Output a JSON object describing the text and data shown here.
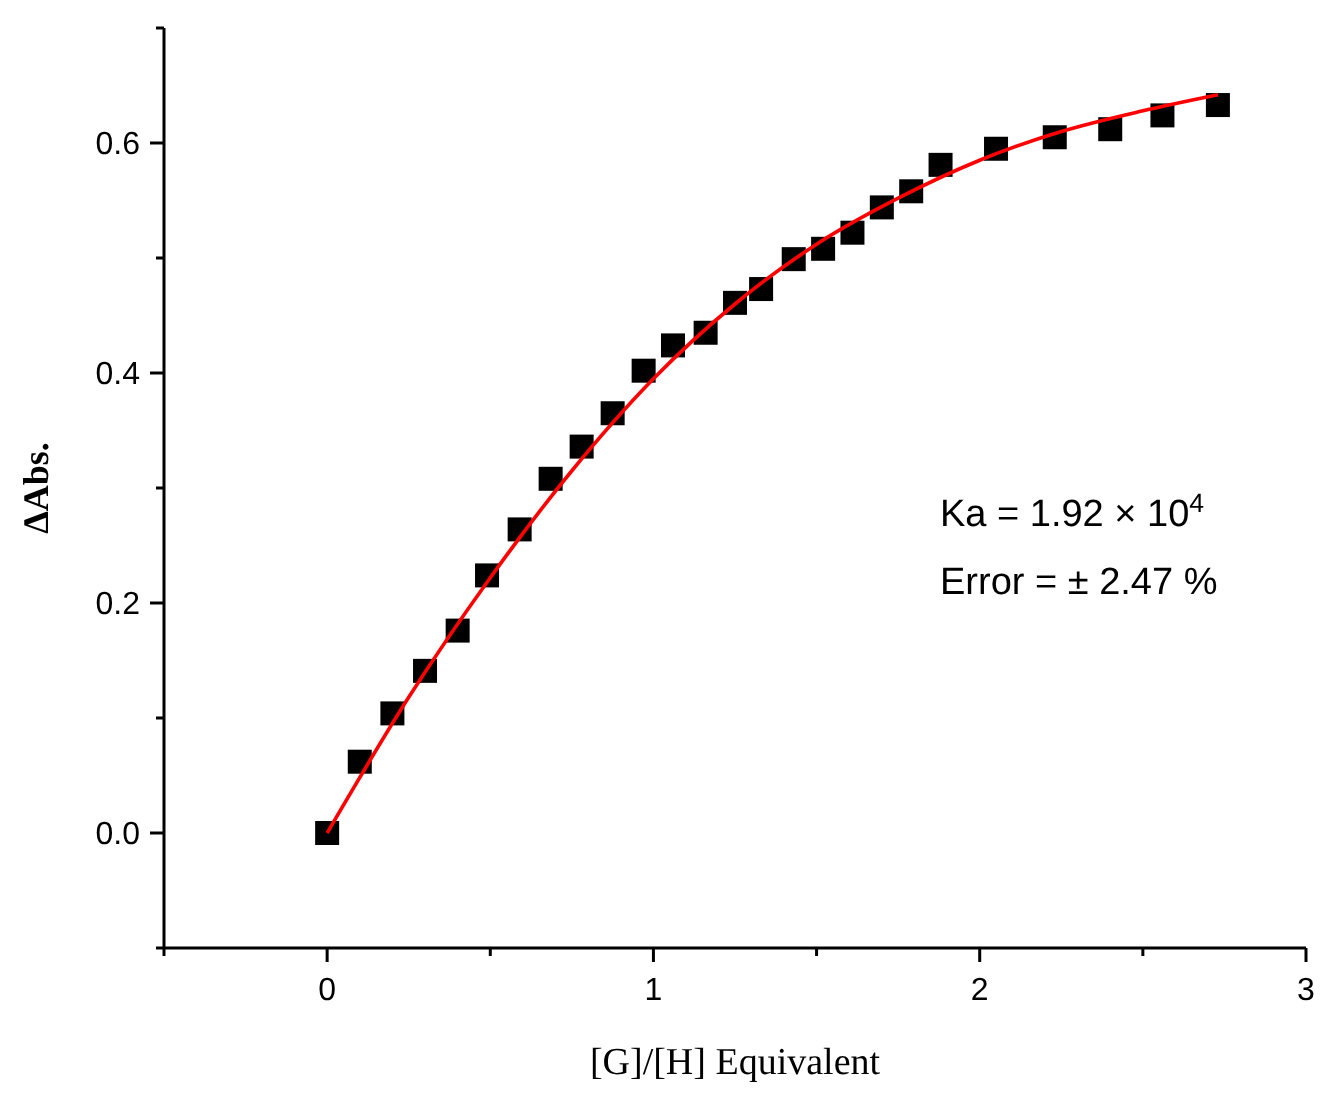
{
  "chart_data": {
    "type": "scatter",
    "xlabel": "[G]/[H] Equivalent",
    "ylabel": "ΔAbs.",
    "xlim": [
      -0.5,
      3
    ],
    "ylim": [
      -0.1,
      0.7
    ],
    "xticks": [
      {
        "value": -0.5,
        "label": null
      },
      0,
      {
        "value": 0.5,
        "label": null
      },
      1,
      {
        "value": 1.5,
        "label": null
      },
      2,
      {
        "value": 2.5,
        "label": null
      },
      3
    ],
    "yticks": [
      {
        "value": -0.1,
        "label": null
      },
      {
        "value": 0,
        "label": "0.0"
      },
      {
        "value": 0.1,
        "label": null
      },
      {
        "value": 0.2,
        "label": "0.2"
      },
      {
        "value": 0.3,
        "label": null
      },
      {
        "value": 0.4,
        "label": "0.4"
      },
      {
        "value": 0.5,
        "label": null
      },
      {
        "value": 0.6,
        "label": "0.6"
      },
      {
        "value": 0.7,
        "label": null
      }
    ],
    "grid": false,
    "series": [
      {
        "color": "#000000",
        "marker": "square",
        "x": [
          0,
          0.1,
          0.2,
          0.3,
          0.4,
          0.49,
          0.59,
          0.685,
          0.78,
          0.875,
          0.97,
          1.06,
          1.16,
          1.25,
          1.33,
          1.43,
          1.52,
          1.61,
          1.7,
          1.79,
          1.88,
          2.05,
          2.23,
          2.4,
          2.56,
          2.73
        ],
        "values": [
          0,
          0.062,
          0.104,
          0.141,
          0.176,
          0.224,
          0.264,
          0.308,
          0.336,
          0.365,
          0.402,
          0.424,
          0.435,
          0.461,
          0.473,
          0.499,
          0.508,
          0.522,
          0.544,
          0.558,
          0.581,
          0.595,
          0.605,
          0.612,
          0.624,
          0.633
        ]
      },
      {
        "type": "line",
        "color": "#ff0000",
        "line_style": "solid",
        "x": [
          0,
          0.25,
          0.5,
          0.75,
          1,
          1.25,
          1.5,
          1.75,
          2,
          2.25,
          2.5,
          2.73
        ],
        "values": [
          0,
          0.118,
          0.222,
          0.315,
          0.395,
          0.46,
          0.512,
          0.552,
          0.585,
          0.61,
          0.628,
          0.642
        ]
      }
    ],
    "annotations": [
      "Ka = 1.92 × 10$^{4}$",
      "Error = ± 2.47 %"
    ]
  }
}
